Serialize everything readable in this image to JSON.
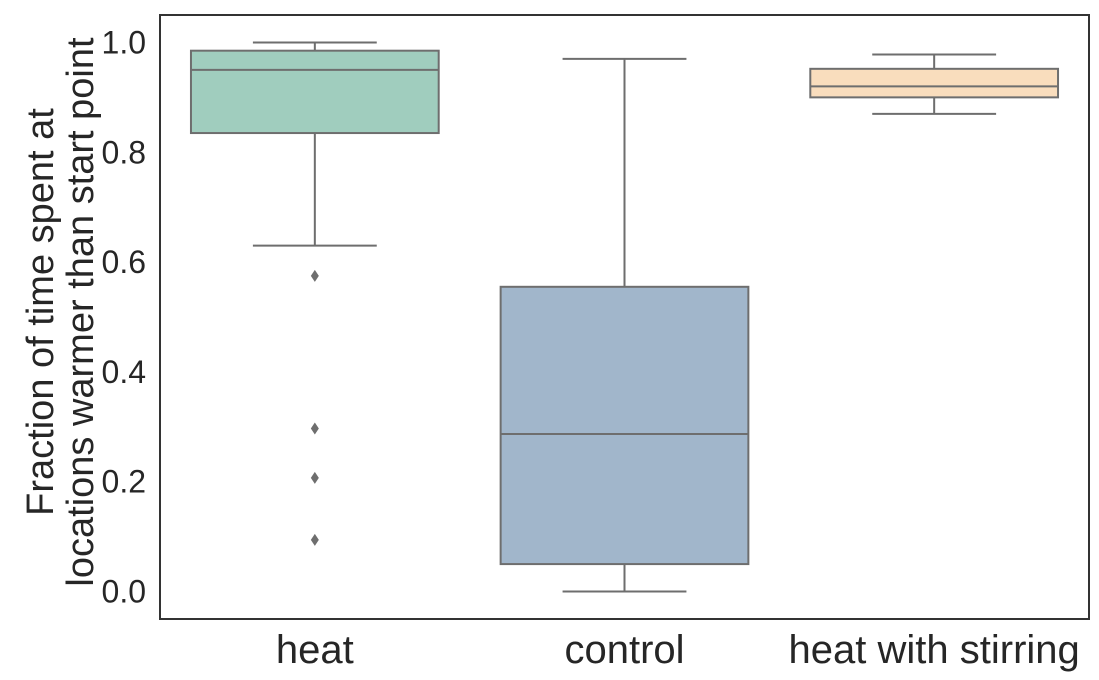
{
  "chart_data": {
    "type": "box",
    "title": "",
    "xlabel": "",
    "ylabel_lines": [
      "Fraction of time spent at",
      "locations warmer than start point"
    ],
    "ylim": [
      -0.05,
      1.05
    ],
    "yticks": [
      0.0,
      0.2,
      0.4,
      0.6,
      0.8,
      1.0
    ],
    "ytick_labels": [
      "0.0",
      "0.2",
      "0.4",
      "0.6",
      "0.8",
      "1.0"
    ],
    "grid": false,
    "categories": [
      "heat",
      "control",
      "heat with stirring"
    ],
    "boxes": [
      {
        "category": "heat",
        "color": "#a0cdbe",
        "whisker_low": 0.63,
        "q1": 0.835,
        "median": 0.95,
        "q3": 0.985,
        "whisker_high": 1.0,
        "outliers": [
          0.575,
          0.297,
          0.207,
          0.094
        ]
      },
      {
        "category": "control",
        "color": "#a1b6cb",
        "whisker_low": 0.0,
        "q1": 0.05,
        "median": 0.287,
        "q3": 0.555,
        "whisker_high": 0.97,
        "outliers": []
      },
      {
        "category": "heat with stirring",
        "color": "#f9ddbd",
        "whisker_low": 0.87,
        "q1": 0.9,
        "median": 0.92,
        "q3": 0.952,
        "whisker_high": 0.978,
        "outliers": []
      }
    ],
    "line_color": "#6e6e6e",
    "axis_color": "#333333"
  }
}
